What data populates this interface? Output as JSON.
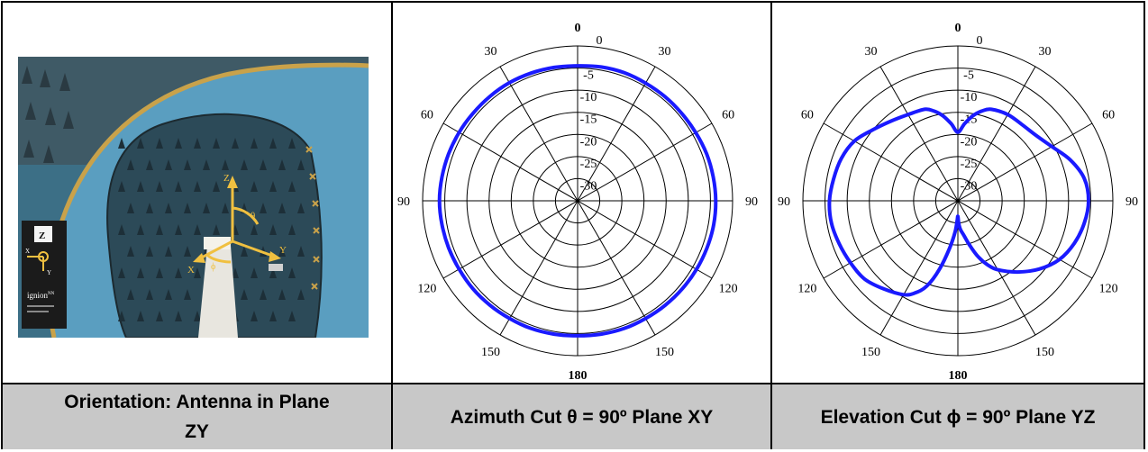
{
  "captions": {
    "left": "Orientation: Antenna in Plane ZY",
    "middle": "Azimuth Cut θ = 90º Plane XY",
    "right": "Elevation Cut  ϕ = 90º Plane YZ"
  },
  "photo": {
    "axis_labels": [
      "Z",
      "θ",
      "X",
      "ϕ",
      "Y"
    ],
    "card_label": "ignion",
    "card_superscript": "NN",
    "card_axis_labels": [
      "Z",
      "X",
      "Y"
    ]
  },
  "colors": {
    "pattern": "#1a1aff",
    "wall": "#5a9ec0",
    "foam": "#2c4a58"
  },
  "chart_data": [
    {
      "type": "polar-line",
      "angle_ticks": [
        "0",
        "30",
        "60",
        "90",
        "120",
        "150",
        "180",
        "150",
        "120",
        "90",
        "60",
        "30"
      ],
      "radial_ticks": [
        "0",
        "-5",
        "-10",
        "-15",
        "-20",
        "-25",
        "-30"
      ],
      "rlim": [
        -35,
        0
      ],
      "series": [
        {
          "angles_deg": [
            0,
            10,
            20,
            30,
            40,
            50,
            60,
            70,
            80,
            90,
            100,
            110,
            120,
            130,
            140,
            150,
            160,
            170,
            180,
            190,
            200,
            210,
            220,
            230,
            240,
            250,
            260,
            270,
            280,
            290,
            300,
            310,
            320,
            330,
            340,
            350
          ],
          "values_db": [
            -4.5,
            -4.3,
            -4.2,
            -4.3,
            -4.3,
            -4.3,
            -4.2,
            -4.0,
            -3.9,
            -3.8,
            -3.8,
            -3.9,
            -4.0,
            -4.1,
            -4.2,
            -4.3,
            -4.3,
            -4.4,
            -4.5,
            -4.4,
            -4.3,
            -4.3,
            -4.2,
            -4.1,
            -4.1,
            -4.0,
            -3.9,
            -3.8,
            -3.9,
            -4.0,
            -4.1,
            -4.2,
            -4.2,
            -4.2,
            -4.3,
            -4.4
          ]
        }
      ]
    },
    {
      "type": "polar-line",
      "angle_ticks": [
        "0",
        "30",
        "60",
        "90",
        "120",
        "150",
        "180",
        "150",
        "120",
        "90",
        "60",
        "30"
      ],
      "radial_ticks": [
        "0",
        "-5",
        "-10",
        "-15",
        "-20",
        "-25",
        "-30"
      ],
      "rlim": [
        -35,
        0
      ],
      "series": [
        {
          "angles_deg": [
            0,
            5,
            10,
            15,
            20,
            30,
            40,
            50,
            60,
            70,
            80,
            90,
            100,
            110,
            120,
            130,
            140,
            150,
            155,
            160,
            165,
            170,
            175,
            178,
            180,
            182,
            185,
            190,
            195,
            200,
            205,
            210,
            220,
            230,
            240,
            250,
            260,
            270,
            280,
            290,
            300,
            310,
            320,
            330,
            340,
            345,
            350,
            355
          ],
          "values_db": [
            -19.5,
            -17.5,
            -15.5,
            -14.0,
            -13.0,
            -12.5,
            -12.5,
            -12.0,
            -10.5,
            -8.0,
            -6.0,
            -5.5,
            -6.0,
            -7.0,
            -8.5,
            -11.0,
            -14.0,
            -17.0,
            -19.0,
            -21.5,
            -24.5,
            -27.0,
            -28.5,
            -30.0,
            -31.5,
            -30.5,
            -28.0,
            -24.0,
            -19.0,
            -14.5,
            -12.0,
            -10.5,
            -9.0,
            -7.5,
            -7.0,
            -6.5,
            -6.0,
            -6.0,
            -6.5,
            -7.0,
            -8.0,
            -10.0,
            -11.5,
            -12.5,
            -13.0,
            -14.0,
            -15.5,
            -17.5
          ]
        }
      ]
    }
  ]
}
